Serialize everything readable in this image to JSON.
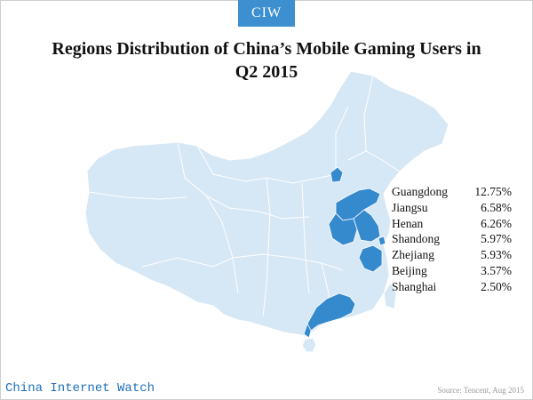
{
  "badge": "CIW",
  "title": "Regions Distribution of China’s Mobile Gaming Users in Q2 2015",
  "legend": [
    {
      "region": "Guangdong",
      "value": "12.75%"
    },
    {
      "region": "Jiangsu",
      "value": "6.58%"
    },
    {
      "region": "Henan",
      "value": "6.26%"
    },
    {
      "region": "Shandong",
      "value": "5.97%"
    },
    {
      "region": "Zhejiang",
      "value": "5.93%"
    },
    {
      "region": "Beijing",
      "value": "3.57%"
    },
    {
      "region": "Shanghai",
      "value": "2.50%"
    }
  ],
  "watermark": "China Internet Watch",
  "source": "Source: Tencent, Aug 2015",
  "colors": {
    "badge": "#3d8fcf",
    "map_base": "#d6e7f5",
    "highlight": "#3589cd",
    "border": "#ffffff",
    "watermark": "#1f6fb8"
  }
}
